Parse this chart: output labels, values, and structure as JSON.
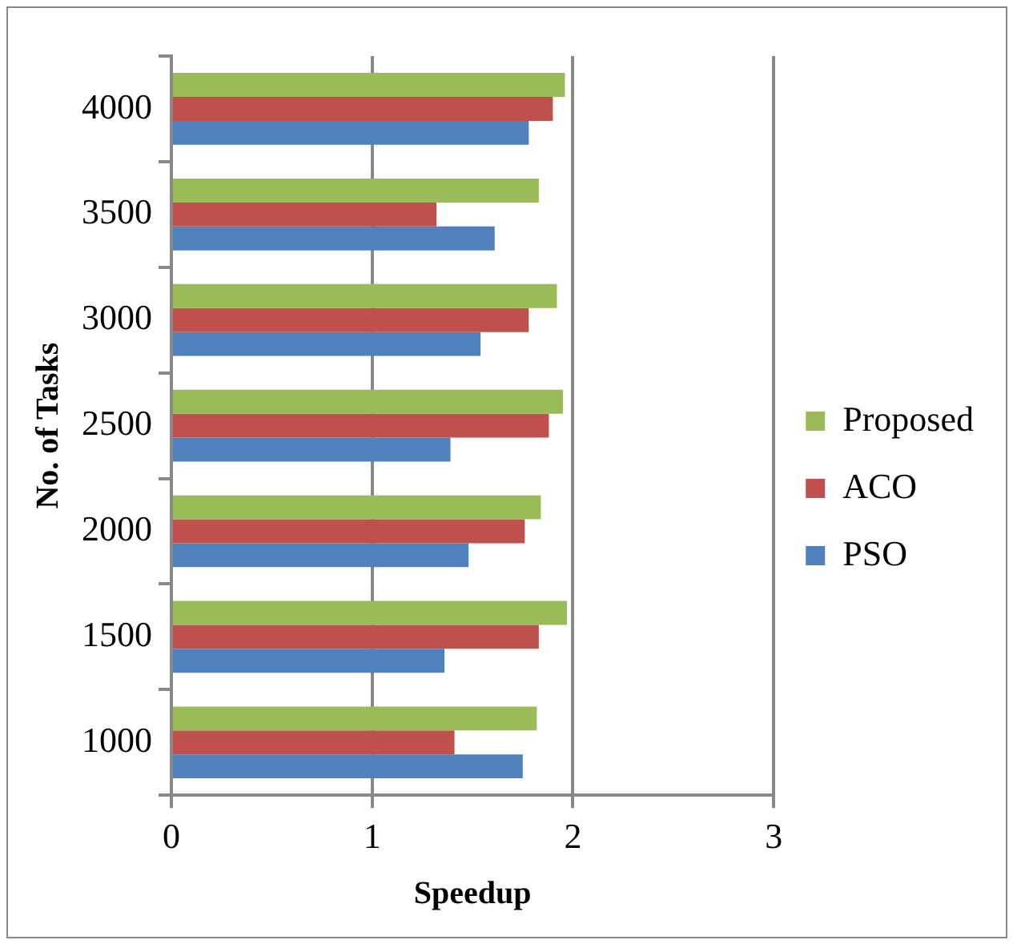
{
  "chart_data": {
    "type": "bar",
    "orientation": "horizontal",
    "xlabel": "Speedup",
    "ylabel": "No. of Tasks",
    "categories": [
      "4000",
      "3500",
      "3000",
      "2500",
      "2000",
      "1500",
      "1000"
    ],
    "series": [
      {
        "name": "Proposed",
        "color": "#9bbb59",
        "values": [
          1.96,
          1.83,
          1.92,
          1.95,
          1.84,
          1.97,
          1.82
        ]
      },
      {
        "name": "ACO",
        "color": "#c0504d",
        "values": [
          1.9,
          1.32,
          1.78,
          1.88,
          1.76,
          1.83,
          1.41
        ]
      },
      {
        "name": "PSO",
        "color": "#4f81bd",
        "values": [
          1.78,
          1.61,
          1.54,
          1.39,
          1.48,
          1.36,
          1.75
        ]
      }
    ],
    "xlim": [
      0,
      3
    ],
    "xticks": [
      0,
      1,
      2,
      3
    ],
    "grid": "x",
    "legend": "right"
  }
}
